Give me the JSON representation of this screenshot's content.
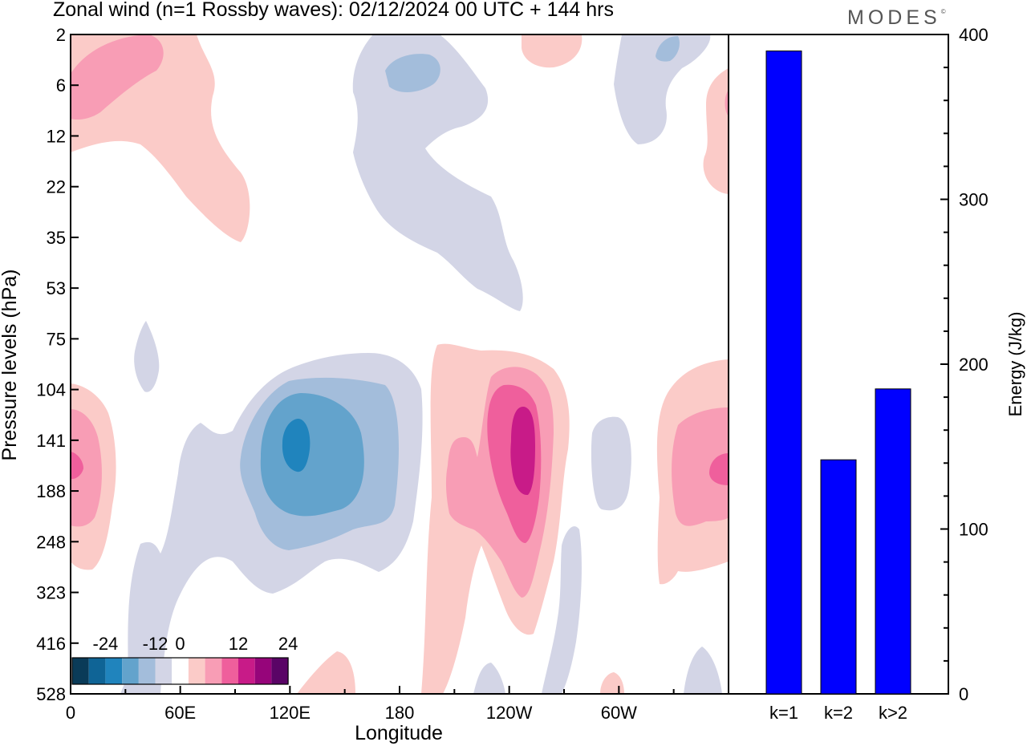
{
  "header": {
    "title": "Zonal wind (n=1 Rossby waves):  02/12/2024  00 UTC  + 144 hrs",
    "logo": "MODES",
    "logo_mark": "©"
  },
  "chart_data": [
    {
      "type": "heatmap",
      "title": "Zonal wind (n=1 Rossby waves):  02/12/2024  00 UTC  + 144 hrs",
      "xlabel": "Longitude",
      "ylabel": "Pressure levels (hPa)",
      "x_tick_labels": [
        "0",
        "60E",
        "120E",
        "180",
        "120W",
        "60W"
      ],
      "x_tick_longitudes_deg_east": [
        0,
        60,
        120,
        180,
        240,
        300
      ],
      "x_range_deg_east": [
        0,
        360
      ],
      "y_tick_labels": [
        "2",
        "6",
        "12",
        "22",
        "35",
        "53",
        "75",
        "104",
        "141",
        "188",
        "248",
        "323",
        "416",
        "528"
      ],
      "y_axis": "pressure levels (categorical, increasing downward)",
      "colorbar": {
        "tick_labels": [
          "-24",
          "-12",
          "0",
          "12",
          "24"
        ],
        "tick_values": [
          -24,
          -12,
          0,
          12,
          24
        ],
        "levels": [
          -28,
          -24,
          -20,
          -16,
          -12,
          -8,
          -4,
          4,
          8,
          12,
          16,
          20,
          24,
          28
        ],
        "colors": [
          "#0a3b58",
          "#0f6496",
          "#2084bd",
          "#63a3cc",
          "#a3bddb",
          "#d3d5e6",
          "#ffffff",
          "#fbcbc8",
          "#f89db5",
          "#ef5f9c",
          "#c81b88",
          "#96057a",
          "#5a0466"
        ]
      },
      "contour_features": [
        {
          "sign": "negative",
          "max_magnitude_level": -20,
          "center_longitude": 122,
          "center_pressure": "141"
        },
        {
          "sign": "positive",
          "max_magnitude_level": 20,
          "center_longitude": 247,
          "center_pressure": "141"
        },
        {
          "sign": "positive",
          "max_magnitude_level": 12,
          "center_longitude": 0,
          "center_pressure": "188"
        },
        {
          "sign": "positive",
          "max_magnitude_level": 12,
          "center_longitude": 360,
          "center_pressure": "188"
        },
        {
          "sign": "positive",
          "max_magnitude_level": 8,
          "center_longitude": 20,
          "center_pressure": "6"
        },
        {
          "sign": "negative",
          "max_magnitude_level": -8,
          "center_longitude": 186,
          "center_pressure": "6"
        }
      ]
    },
    {
      "type": "bar",
      "categories": [
        "k=1",
        "k=2",
        "k>2"
      ],
      "values": [
        390,
        142,
        185
      ],
      "ylabel": "Energy (J/kg)",
      "ylim": [
        0,
        400
      ],
      "y_ticks": [
        0,
        100,
        200,
        300,
        400
      ],
      "bar_color": "#0000ff"
    }
  ]
}
